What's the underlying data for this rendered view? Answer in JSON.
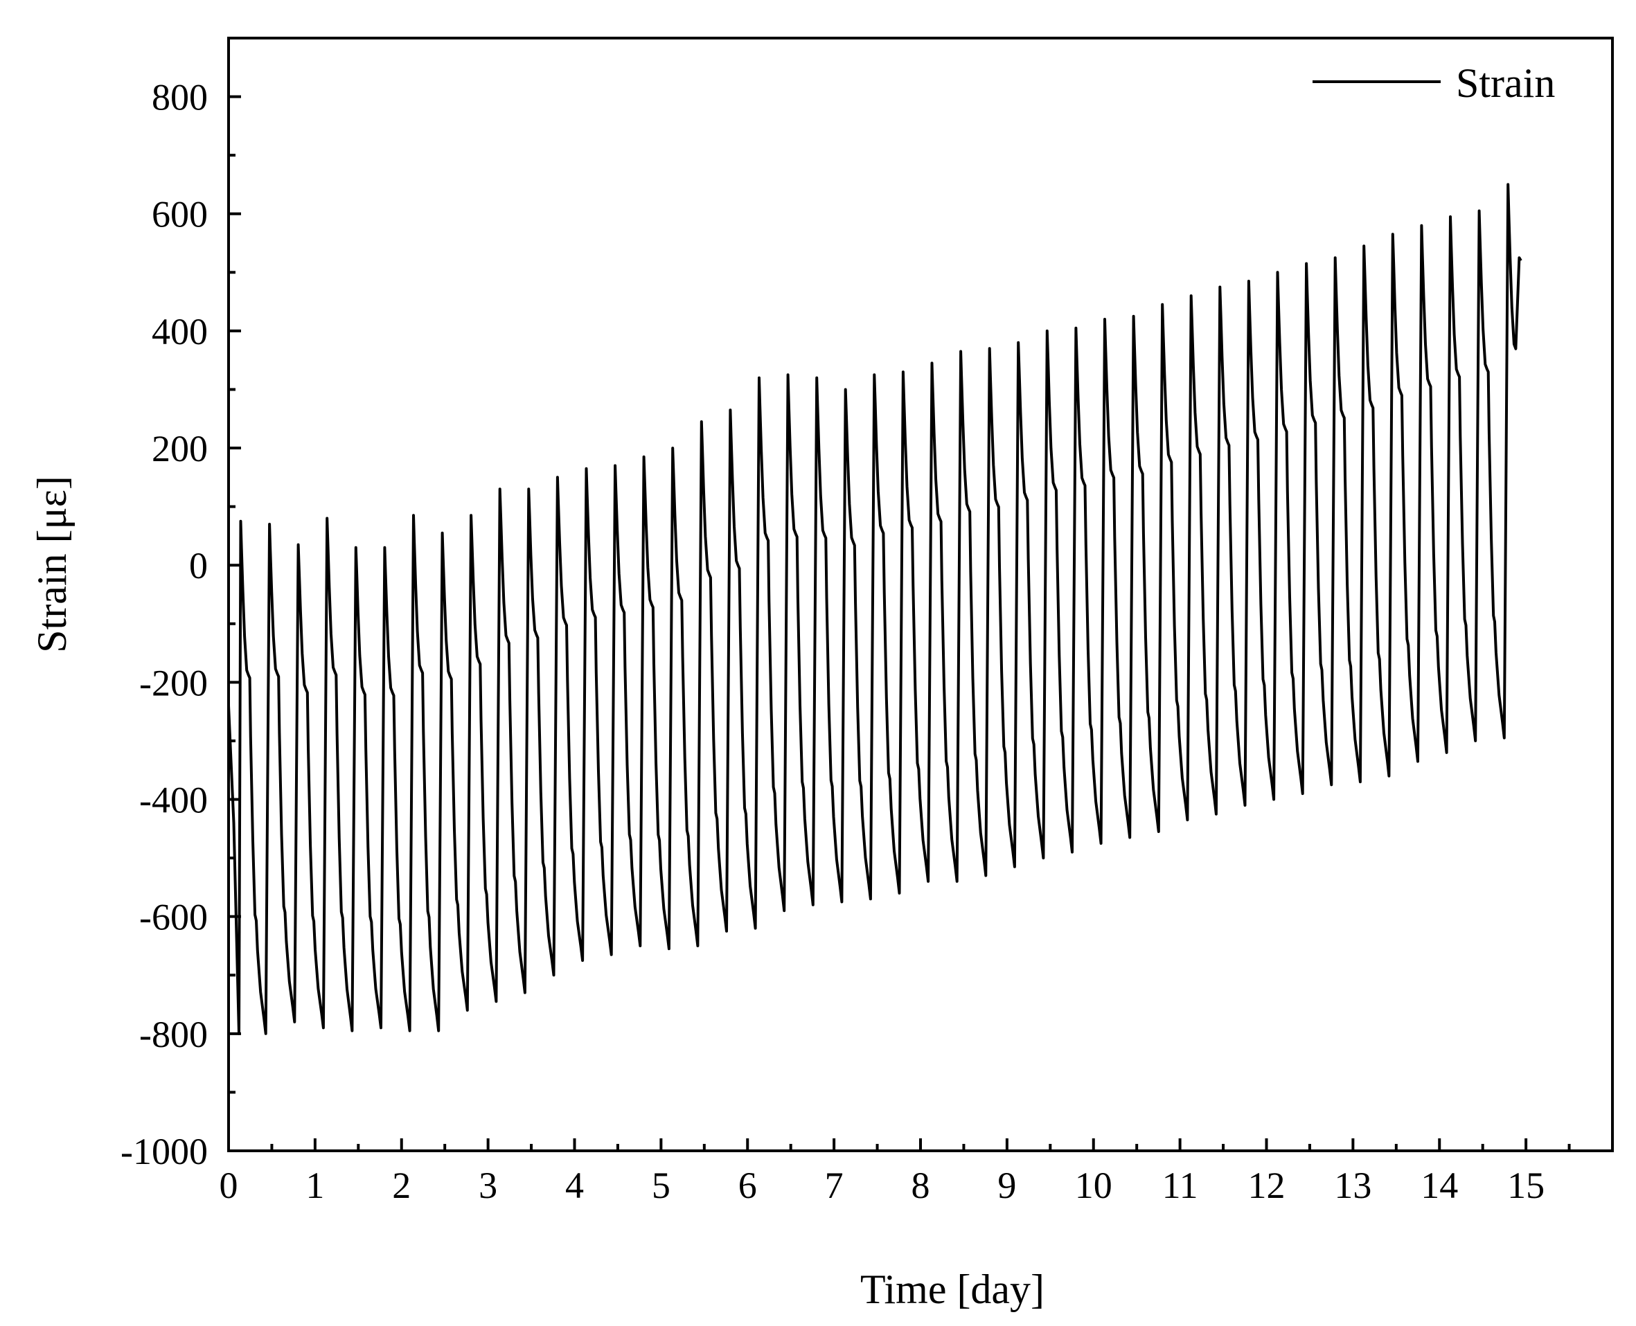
{
  "chart_data": {
    "type": "line",
    "title": "",
    "xlabel": "Time [day]",
    "ylabel": "Strain [με]",
    "xlim": [
      0,
      16
    ],
    "ylim": [
      -1000,
      900
    ],
    "xticks": [
      0,
      1,
      2,
      3,
      4,
      5,
      6,
      7,
      8,
      9,
      10,
      11,
      12,
      13,
      14,
      15
    ],
    "xtick_labels": [
      "0",
      "1",
      "2",
      "3",
      "4",
      "5",
      "6",
      "7",
      "8",
      "9",
      "10",
      "11",
      "12",
      "13",
      "14",
      "15"
    ],
    "yticks": [
      -1000,
      -800,
      -600,
      -400,
      -200,
      0,
      200,
      400,
      600,
      800
    ],
    "ytick_labels": [
      "-1000",
      "-800",
      "-600",
      "-400",
      "-200",
      "0",
      "200",
      "400",
      "600",
      "800"
    ],
    "grid": false,
    "legend": {
      "position": "top-right",
      "entries": [
        "Strain"
      ]
    },
    "series_color": "#000000",
    "cycle_period_day": 0.333,
    "series": [
      {
        "name": "Strain",
        "description": "cyclic strain, three cycles per day",
        "cycle_peaks": [
          75,
          70,
          35,
          80,
          30,
          30,
          85,
          55,
          85,
          130,
          130,
          150,
          165,
          170,
          185,
          200,
          245,
          265,
          320,
          325,
          320,
          300,
          325,
          330,
          345,
          365,
          370,
          380,
          400,
          405,
          420,
          425,
          445,
          460,
          475,
          485,
          500,
          515,
          525,
          545,
          565,
          580,
          595,
          605,
          650
        ],
        "cycle_troughs": [
          -800,
          -780,
          -790,
          -795,
          -790,
          -795,
          -795,
          -760,
          -745,
          -730,
          -700,
          -675,
          -665,
          -650,
          -655,
          -650,
          -625,
          -620,
          -590,
          -580,
          -575,
          -570,
          -560,
          -540,
          -540,
          -530,
          -515,
          -500,
          -490,
          -475,
          -465,
          -455,
          -435,
          -425,
          -410,
          -400,
          -390,
          -375,
          -370,
          -360,
          -335,
          -320,
          -300,
          -295,
          -285
        ],
        "final_value": 520
      }
    ]
  }
}
